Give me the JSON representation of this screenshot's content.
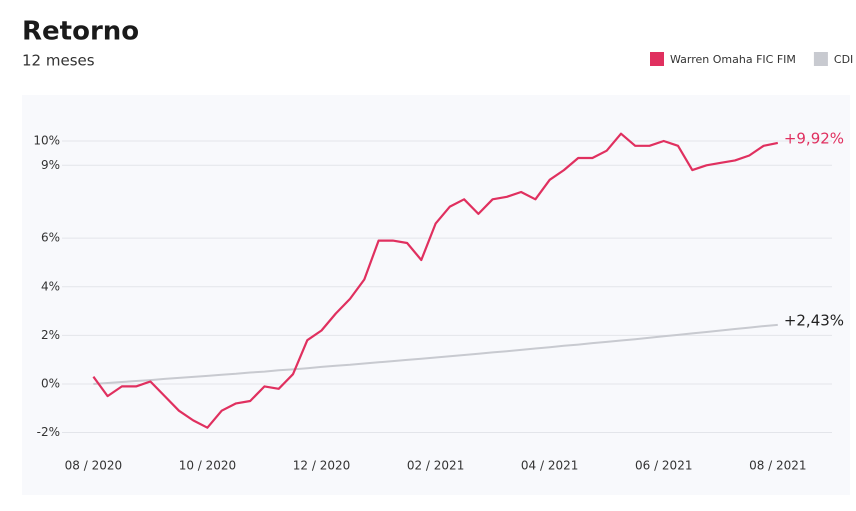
{
  "chart_data": {
    "type": "line",
    "title": "Retorno",
    "subtitle": "12 meses",
    "x": [
      0,
      0.25,
      0.5,
      0.75,
      1,
      1.25,
      1.5,
      1.75,
      2,
      2.25,
      2.5,
      2.75,
      3,
      3.25,
      3.5,
      3.75,
      4,
      4.25,
      4.5,
      4.75,
      5,
      5.25,
      5.5,
      5.75,
      6,
      6.25,
      6.5,
      6.75,
      7,
      7.25,
      7.5,
      7.75,
      8,
      8.25,
      8.5,
      8.75,
      9,
      9.25,
      9.5,
      9.75,
      10,
      10.25,
      10.5,
      10.75,
      11,
      11.25,
      11.5,
      11.75,
      12
    ],
    "series": [
      {
        "name": "Warren Omaha FIC FIM",
        "color": "#e0305f",
        "last_label": "+9,92%",
        "values": [
          0.3,
          -0.5,
          -0.1,
          -0.1,
          0.1,
          -0.5,
          -1.1,
          -1.5,
          -1.8,
          -1.1,
          -0.8,
          -0.7,
          -0.1,
          -0.2,
          0.4,
          1.8,
          2.2,
          2.9,
          3.5,
          4.3,
          5.9,
          5.9,
          5.8,
          5.1,
          6.6,
          7.3,
          7.6,
          7.0,
          7.6,
          7.7,
          7.9,
          7.6,
          8.4,
          8.8,
          9.3,
          9.3,
          9.6,
          10.3,
          9.8,
          9.8,
          10.0,
          9.8,
          8.8,
          9.0,
          9.1,
          9.2,
          9.4,
          9.8,
          9.92
        ]
      },
      {
        "name": "CDI",
        "color": "#c8cad0",
        "last_label": "+2,43%",
        "values": [
          0,
          0.04,
          0.08,
          0.12,
          0.16,
          0.21,
          0.25,
          0.29,
          0.33,
          0.38,
          0.42,
          0.47,
          0.51,
          0.56,
          0.6,
          0.65,
          0.7,
          0.75,
          0.79,
          0.84,
          0.89,
          0.94,
          0.99,
          1.04,
          1.09,
          1.14,
          1.19,
          1.24,
          1.3,
          1.35,
          1.4,
          1.46,
          1.51,
          1.57,
          1.62,
          1.68,
          1.73,
          1.79,
          1.84,
          1.9,
          1.96,
          2.02,
          2.08,
          2.14,
          2.2,
          2.26,
          2.32,
          2.38,
          2.43
        ]
      }
    ],
    "xlim": [
      -0.55,
      12.95
    ],
    "xticks": [
      {
        "value": 0,
        "label": "08 / 2020"
      },
      {
        "value": 2,
        "label": "10 / 2020"
      },
      {
        "value": 4,
        "label": "12 / 2020"
      },
      {
        "value": 6,
        "label": "02 / 2021"
      },
      {
        "value": 8,
        "label": "04 / 2021"
      },
      {
        "value": 10,
        "label": "06 / 2021"
      },
      {
        "value": 12,
        "label": "08 / 2021"
      }
    ],
    "ylim": [
      -2.8,
      11.5
    ],
    "yticks": [
      {
        "value": 10,
        "label": "10%"
      },
      {
        "value": 9,
        "label": "9%"
      },
      {
        "value": 6,
        "label": "6%"
      },
      {
        "value": 4,
        "label": "4%"
      },
      {
        "value": 2,
        "label": "2%"
      },
      {
        "value": 0,
        "label": "0%"
      },
      {
        "value": -2,
        "label": "-2%"
      }
    ],
    "grid": true,
    "legend": "top-right"
  }
}
